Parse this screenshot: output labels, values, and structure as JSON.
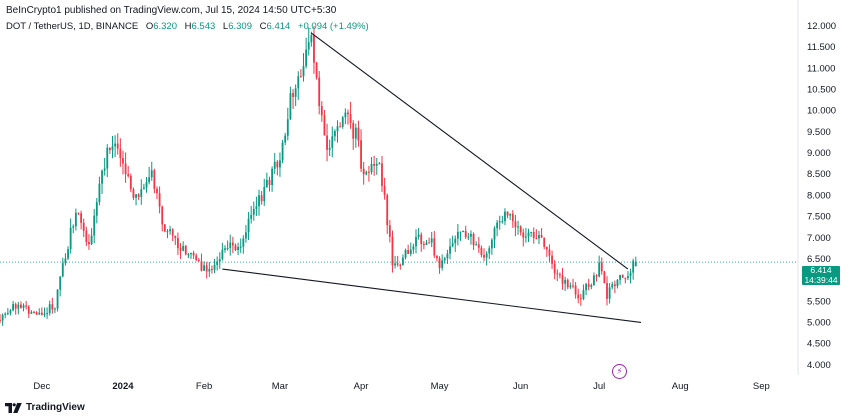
{
  "header": {
    "published": "BeInCrypto1 published on TradingView.com, Jul 15, 2024 14:50 UTC+5:30"
  },
  "legend": {
    "symbol": "DOT / TetherUS, 1D, BINANCE",
    "open_label": "O",
    "open": "6.320",
    "high_label": "H",
    "high": "6.543",
    "low_label": "L",
    "low": "6.309",
    "close_label": "C",
    "close": "6.414",
    "change": "+0.094 (+1.49%)"
  },
  "price_badge": {
    "price": "6.414",
    "countdown": "14:39:44"
  },
  "footer": {
    "brand": "TradingView"
  },
  "icons": {
    "replay": "lightning-bolt-icon",
    "logo": "tradingview-logo-icon"
  },
  "colors": {
    "up": "#089981",
    "down": "#f23645",
    "trendline": "#131722",
    "last_price": "#089981",
    "bolt": "#9c27b0"
  },
  "chart_data": {
    "type": "candlestick",
    "x_range": [
      "2023-11-15",
      "2024-09-15"
    ],
    "ylim": [
      3.75,
      12.6
    ],
    "y_ticks": [
      "4.000",
      "4.500",
      "5.000",
      "5.500",
      "6.000",
      "6.500",
      "7.000",
      "7.500",
      "8.000",
      "8.500",
      "9.000",
      "9.500",
      "10.000",
      "10.500",
      "11.000",
      "11.500",
      "12.000"
    ],
    "x_ticks": [
      {
        "date": "2023-12-01",
        "label": "Dec",
        "bold": false
      },
      {
        "date": "2024-01-01",
        "label": "2024",
        "bold": true
      },
      {
        "date": "2024-02-01",
        "label": "Feb",
        "bold": false
      },
      {
        "date": "2024-03-01",
        "label": "Mar",
        "bold": false
      },
      {
        "date": "2024-04-01",
        "label": "Apr",
        "bold": false
      },
      {
        "date": "2024-05-01",
        "label": "May",
        "bold": false
      },
      {
        "date": "2024-06-01",
        "label": "Jun",
        "bold": false
      },
      {
        "date": "2024-07-01",
        "label": "Jul",
        "bold": false
      },
      {
        "date": "2024-08-01",
        "label": "Aug",
        "bold": false
      },
      {
        "date": "2024-09-01",
        "label": "Sep",
        "bold": false
      }
    ],
    "last_price": 6.414,
    "close_path": [
      {
        "date": "2023-11-15",
        "close": 5.05
      },
      {
        "date": "2023-11-22",
        "close": 5.45
      },
      {
        "date": "2023-11-29",
        "close": 5.2
      },
      {
        "date": "2023-12-06",
        "close": 5.4
      },
      {
        "date": "2023-12-10",
        "close": 6.6
      },
      {
        "date": "2023-12-14",
        "close": 7.6
      },
      {
        "date": "2023-12-19",
        "close": 6.7
      },
      {
        "date": "2023-12-24",
        "close": 8.5
      },
      {
        "date": "2023-12-27",
        "close": 9.25
      },
      {
        "date": "2024-01-01",
        "close": 8.7
      },
      {
        "date": "2024-01-07",
        "close": 7.8
      },
      {
        "date": "2024-01-12",
        "close": 8.6
      },
      {
        "date": "2024-01-16",
        "close": 7.3
      },
      {
        "date": "2024-01-22",
        "close": 6.8
      },
      {
        "date": "2024-01-27",
        "close": 6.65
      },
      {
        "date": "2024-02-01",
        "close": 6.2
      },
      {
        "date": "2024-02-08",
        "close": 6.6
      },
      {
        "date": "2024-02-15",
        "close": 6.9
      },
      {
        "date": "2024-02-20",
        "close": 7.7
      },
      {
        "date": "2024-02-25",
        "close": 8.2
      },
      {
        "date": "2024-03-01",
        "close": 9.0
      },
      {
        "date": "2024-03-05",
        "close": 10.2
      },
      {
        "date": "2024-03-09",
        "close": 10.9
      },
      {
        "date": "2024-03-13",
        "close": 11.6
      },
      {
        "date": "2024-03-16",
        "close": 10.2
      },
      {
        "date": "2024-03-19",
        "close": 9.2
      },
      {
        "date": "2024-03-22",
        "close": 9.3
      },
      {
        "date": "2024-03-26",
        "close": 9.8
      },
      {
        "date": "2024-03-30",
        "close": 9.45
      },
      {
        "date": "2024-04-02",
        "close": 8.4
      },
      {
        "date": "2024-04-08",
        "close": 8.8
      },
      {
        "date": "2024-04-12",
        "close": 7.0
      },
      {
        "date": "2024-04-13",
        "close": 6.3
      },
      {
        "date": "2024-04-18",
        "close": 6.6
      },
      {
        "date": "2024-04-23",
        "close": 7.0
      },
      {
        "date": "2024-04-28",
        "close": 6.9
      },
      {
        "date": "2024-05-01",
        "close": 6.3
      },
      {
        "date": "2024-05-06",
        "close": 6.9
      },
      {
        "date": "2024-05-11",
        "close": 7.1
      },
      {
        "date": "2024-05-15",
        "close": 6.8
      },
      {
        "date": "2024-05-19",
        "close": 6.6
      },
      {
        "date": "2024-05-23",
        "close": 7.3
      },
      {
        "date": "2024-05-27",
        "close": 7.5
      },
      {
        "date": "2024-05-31",
        "close": 7.1
      },
      {
        "date": "2024-06-05",
        "close": 7.2
      },
      {
        "date": "2024-06-09",
        "close": 6.9
      },
      {
        "date": "2024-06-13",
        "close": 6.35
      },
      {
        "date": "2024-06-17",
        "close": 6.0
      },
      {
        "date": "2024-06-21",
        "close": 5.8
      },
      {
        "date": "2024-06-24",
        "close": 5.6
      },
      {
        "date": "2024-06-28",
        "close": 5.95
      },
      {
        "date": "2024-07-01",
        "close": 6.3
      },
      {
        "date": "2024-07-04",
        "close": 5.6
      },
      {
        "date": "2024-07-05",
        "close": 5.9
      },
      {
        "date": "2024-07-09",
        "close": 6.0
      },
      {
        "date": "2024-07-12",
        "close": 6.15
      },
      {
        "date": "2024-07-15",
        "close": 6.414
      }
    ],
    "trendlines": [
      {
        "name": "",
        "from": {
          "date": "2024-03-13",
          "price": 11.82
        },
        "to": {
          "date": "2024-07-12",
          "price": 6.25
        }
      },
      {
        "name": "",
        "from": {
          "date": "2024-02-08",
          "price": 6.25
        },
        "to": {
          "date": "2024-07-17",
          "price": 4.99
        }
      }
    ]
  }
}
